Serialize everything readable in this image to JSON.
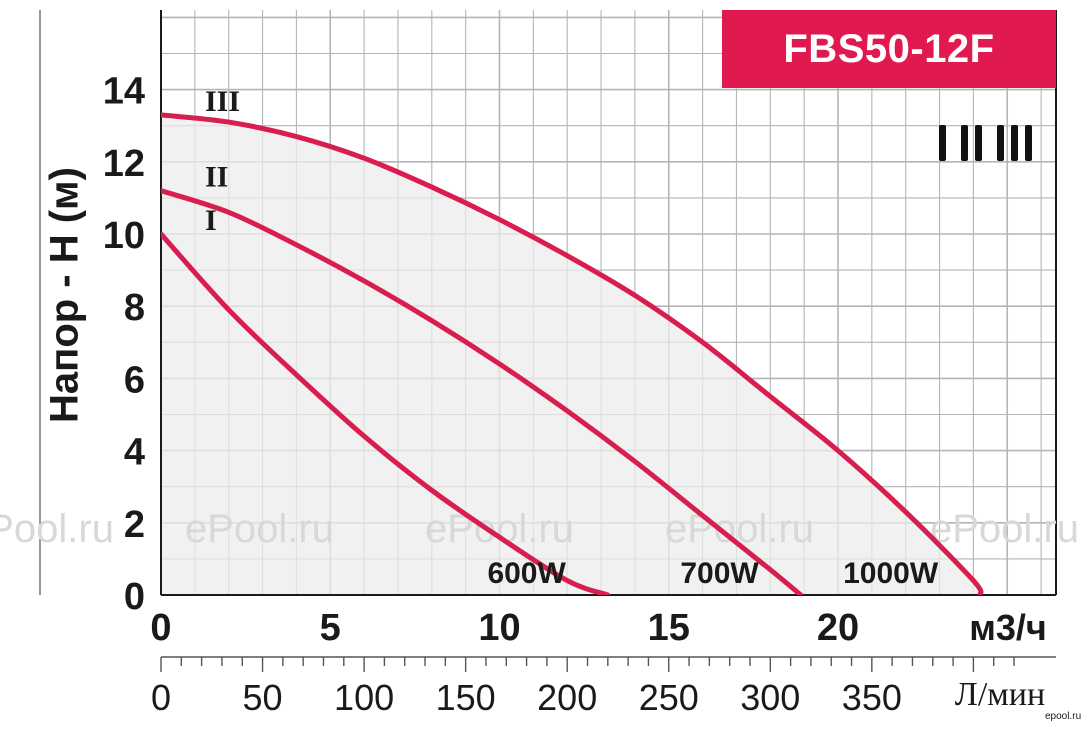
{
  "chart_data": {
    "type": "line",
    "title": "FBS50-12F",
    "ylabel": "Напор - H (м)",
    "xlabel": "м3/ч",
    "xlabel_secondary": "Л/мин",
    "xlim": [
      0,
      26
    ],
    "ylim": [
      0,
      16
    ],
    "x_ticks": [
      "0",
      "5",
      "10",
      "15",
      "20"
    ],
    "x_ticks_values": [
      0,
      5,
      10,
      15,
      20
    ],
    "y_ticks": [
      "0",
      "2",
      "4",
      "6",
      "8",
      "10",
      "12",
      "14"
    ],
    "y_ticks_values": [
      0,
      2,
      4,
      6,
      8,
      10,
      12,
      14
    ],
    "secondary_x_ticks": [
      "0",
      "50",
      "100",
      "150",
      "200",
      "250",
      "300",
      "350"
    ],
    "secondary_x_ticks_values": [
      0,
      50,
      100,
      150,
      200,
      250,
      300,
      350
    ],
    "grid": true,
    "shaded_operating_area": true,
    "series": [
      {
        "name": "I",
        "power": "600W",
        "x": [
          0,
          2,
          4,
          6,
          8,
          10,
          12,
          13.2
        ],
        "y": [
          10.0,
          7.9,
          6.1,
          4.4,
          2.9,
          1.6,
          0.4,
          0
        ]
      },
      {
        "name": "II",
        "power": "700W",
        "x": [
          0,
          2,
          4,
          6,
          8,
          10,
          12,
          14,
          16,
          18,
          18.9
        ],
        "y": [
          11.2,
          10.6,
          9.7,
          8.7,
          7.6,
          6.4,
          5.1,
          3.7,
          2.2,
          0.7,
          0
        ]
      },
      {
        "name": "III",
        "power": "1000W",
        "x": [
          0,
          2,
          4,
          6,
          8,
          10,
          12,
          14,
          16,
          18,
          20,
          22,
          24,
          24.2
        ],
        "y": [
          13.3,
          13.1,
          12.7,
          12.1,
          11.3,
          10.4,
          9.4,
          8.3,
          7.0,
          5.5,
          4.0,
          2.3,
          0.4,
          0
        ]
      }
    ],
    "speed_legend": "I II III",
    "colors": {
      "curve": "#d81e4f",
      "grid": "#b5b5b5",
      "shade": "#ececec",
      "title_bg": "#e0194f"
    }
  },
  "watermark": "ePool.ru",
  "site_tag": "epool.ru"
}
